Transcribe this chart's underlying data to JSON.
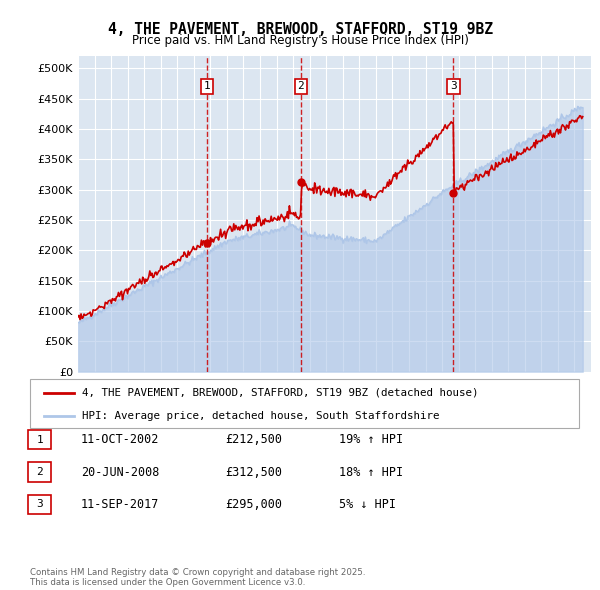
{
  "title": "4, THE PAVEMENT, BREWOOD, STAFFORD, ST19 9BZ",
  "subtitle": "Price paid vs. HM Land Registry's House Price Index (HPI)",
  "ylim": [
    0,
    520000
  ],
  "yticks": [
    0,
    50000,
    100000,
    150000,
    200000,
    250000,
    300000,
    350000,
    400000,
    450000,
    500000
  ],
  "ytick_labels": [
    "£0",
    "£50K",
    "£100K",
    "£150K",
    "£200K",
    "£250K",
    "£300K",
    "£350K",
    "£400K",
    "£450K",
    "£500K"
  ],
  "background_color": "#ffffff",
  "plot_bg_color": "#dce6f1",
  "grid_color": "#ffffff",
  "hpi_color": "#aec6e8",
  "price_color": "#cc0000",
  "vline_color": "#cc0000",
  "legend_label_price": "4, THE PAVEMENT, BREWOOD, STAFFORD, ST19 9BZ (detached house)",
  "legend_label_hpi": "HPI: Average price, detached house, South Staffordshire",
  "sales": [
    {
      "num": 1,
      "date_x": 2002.78,
      "price": 212500,
      "label": "1"
    },
    {
      "num": 2,
      "date_x": 2008.47,
      "price": 312500,
      "label": "2"
    },
    {
      "num": 3,
      "date_x": 2017.69,
      "price": 295000,
      "label": "3"
    }
  ],
  "table_rows": [
    {
      "num": 1,
      "date": "11-OCT-2002",
      "price": "£212,500",
      "hpi_pct": "19% ↑ HPI"
    },
    {
      "num": 2,
      "date": "20-JUN-2008",
      "price": "£312,500",
      "hpi_pct": "18% ↑ HPI"
    },
    {
      "num": 3,
      "date": "11-SEP-2017",
      "price": "£295,000",
      "hpi_pct": "5% ↓ HPI"
    }
  ],
  "footer": "Contains HM Land Registry data © Crown copyright and database right 2025.\nThis data is licensed under the Open Government Licence v3.0.",
  "xlim": [
    1995,
    2026
  ],
  "xticks": [
    1995,
    1996,
    1997,
    1998,
    1999,
    2000,
    2001,
    2002,
    2003,
    2004,
    2005,
    2006,
    2007,
    2008,
    2009,
    2010,
    2011,
    2012,
    2013,
    2014,
    2015,
    2016,
    2017,
    2018,
    2019,
    2020,
    2021,
    2022,
    2023,
    2024,
    2025
  ]
}
